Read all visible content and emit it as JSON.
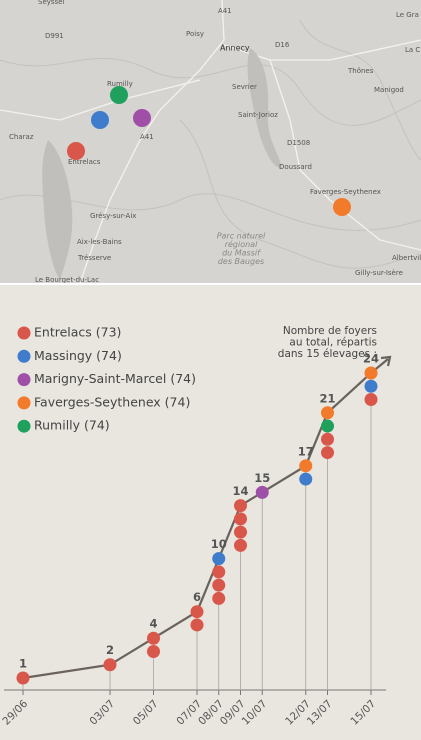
{
  "map": {
    "places": [
      "Seyssel",
      "D991",
      "Poisy",
      "A41",
      "Annecy",
      "D16",
      "Le Gra",
      "La C",
      "Thônes",
      "Manigod",
      "Rumilly",
      "Sevrier",
      "A41",
      "Charaz",
      "Saint-Jorioz",
      "D1508",
      "Entrelacs",
      "Doussard",
      "Faverges-Seythenex",
      "Grésy-sur-Aix",
      "Aix-les-Bains",
      "Trésserve",
      "Le Bourget-du-Lac",
      "Albertville",
      "Gilly-sur-Isère"
    ],
    "park": [
      "Parc naturel",
      "régional",
      "du Massif",
      "des Bauges"
    ]
  },
  "chart_data": {
    "type": "line",
    "note": [
      "Nombre de foyers",
      "au total, répartis",
      "dans 15 élevages :"
    ],
    "x": [
      "29/06",
      "03/07",
      "05/07",
      "07/07",
      "08/07",
      "09/07",
      "10/07",
      "12/07",
      "13/07",
      "15/07"
    ],
    "values": [
      1,
      2,
      4,
      6,
      10,
      14,
      15,
      17,
      21,
      24
    ],
    "line_color": "#6a625c",
    "series": [
      {
        "name": "Entrelacs (73)",
        "color": "#d9574a",
        "values": [
          1,
          1,
          2,
          2,
          3,
          4,
          0,
          0,
          2,
          1
        ]
      },
      {
        "name": "Massingy (74)",
        "color": "#3f7ccb",
        "values": [
          0,
          0,
          0,
          0,
          1,
          0,
          0,
          1,
          0,
          1
        ]
      },
      {
        "name": "Marigny-Saint-Marcel (74)",
        "color": "#a04fa8",
        "values": [
          0,
          0,
          0,
          0,
          0,
          0,
          1,
          0,
          0,
          0
        ]
      },
      {
        "name": "Faverges-Seythenex (74)",
        "color": "#f27a2b",
        "values": [
          0,
          0,
          0,
          0,
          0,
          0,
          0,
          1,
          1,
          1
        ]
      },
      {
        "name": "Rumilly (74)",
        "color": "#1fa05c",
        "values": [
          0,
          0,
          0,
          0,
          0,
          0,
          0,
          0,
          1,
          0
        ]
      }
    ]
  }
}
